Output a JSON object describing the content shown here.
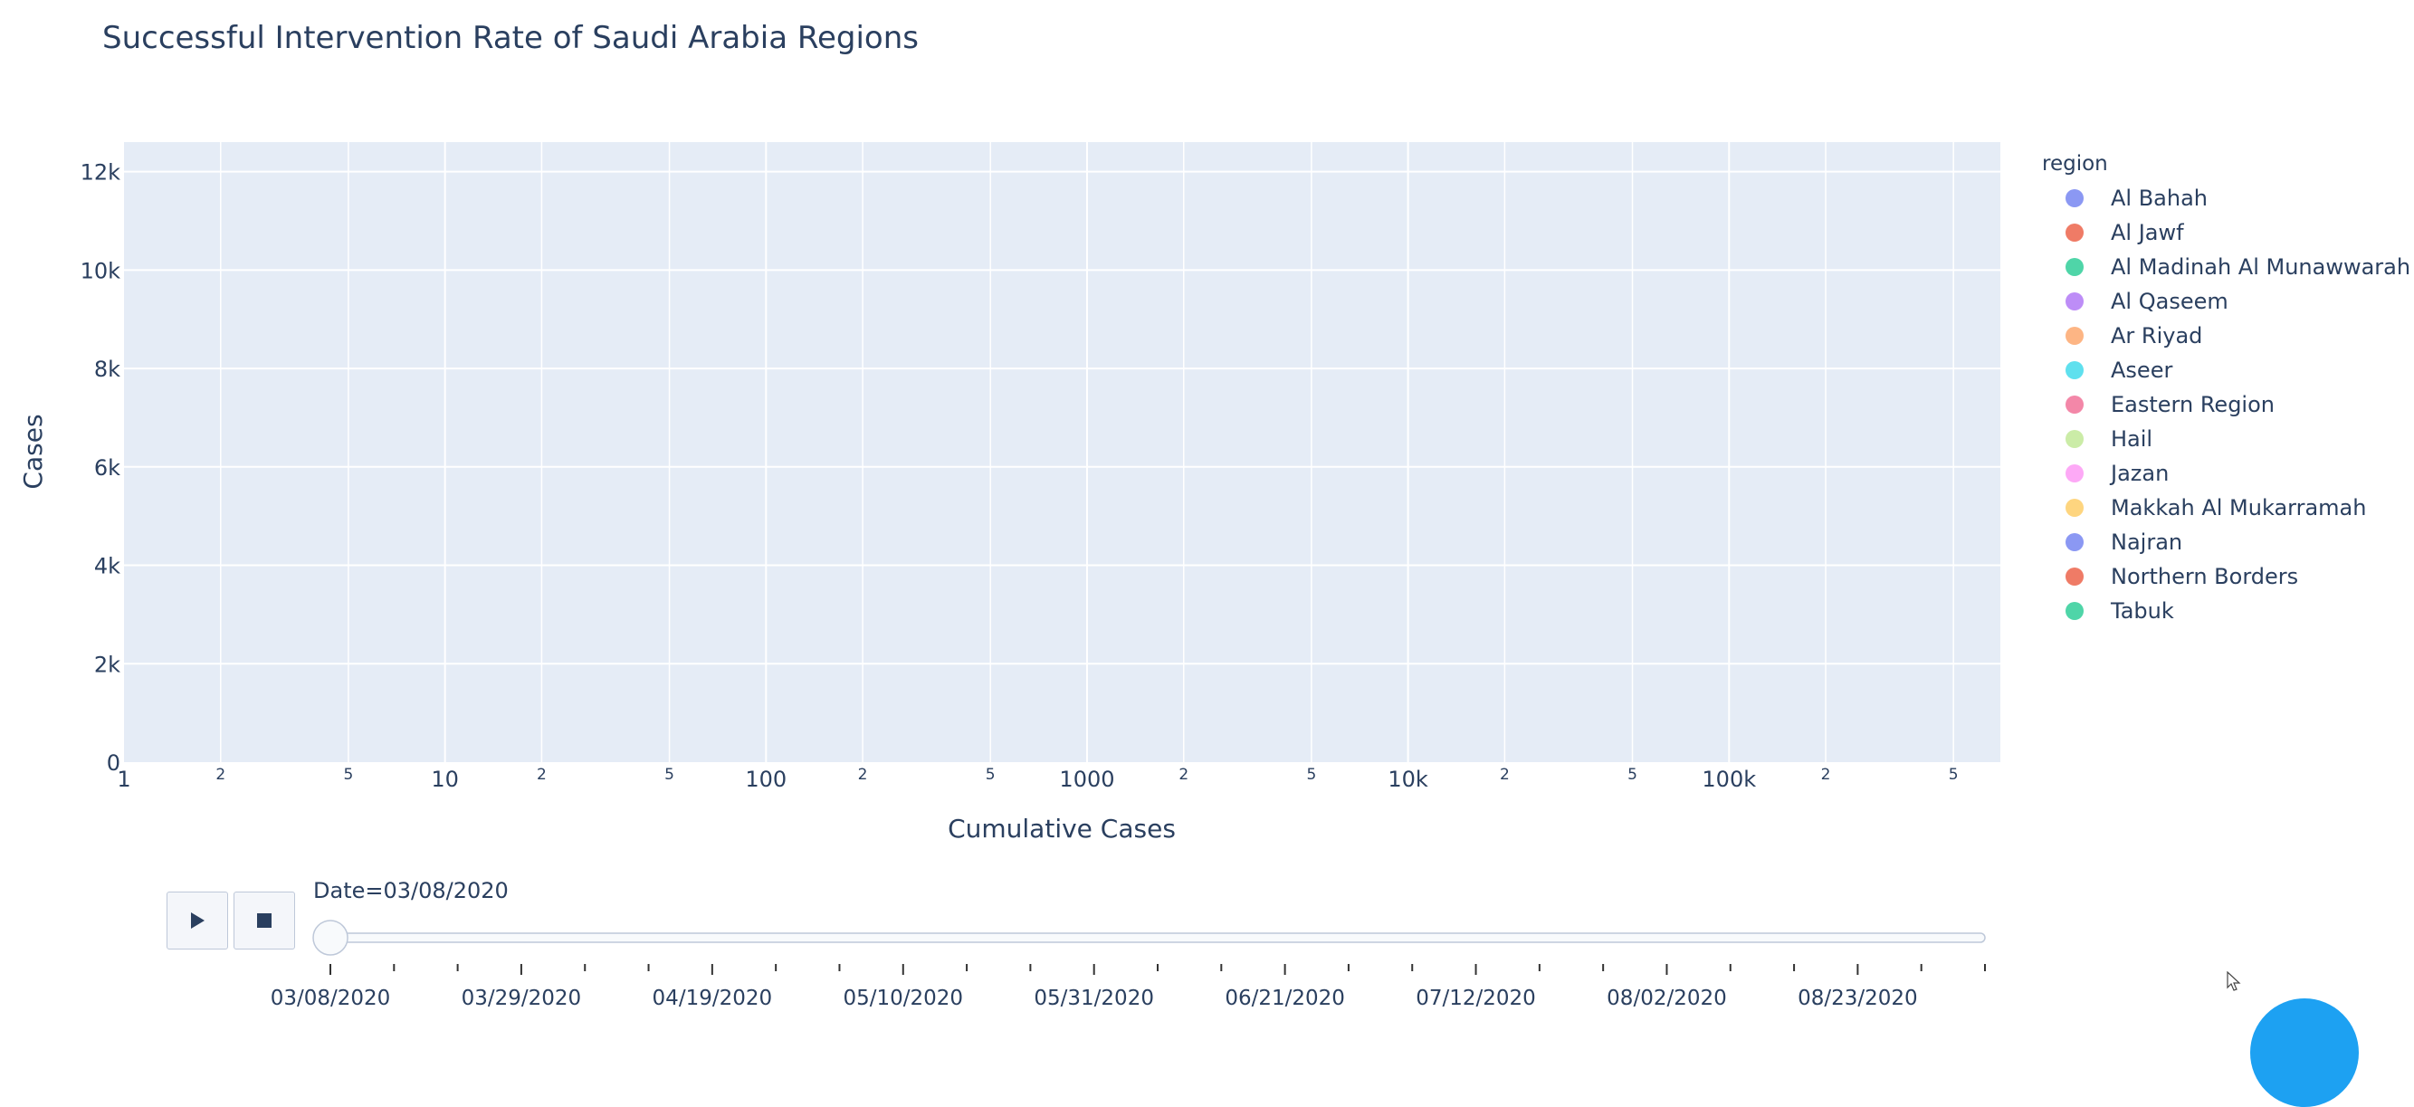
{
  "chart_data": {
    "type": "scatter",
    "title": "Successful Intervention Rate of Saudi Arabia Regions",
    "xlabel": "Cumulative Cases",
    "ylabel": "Cases",
    "x_scale": "log",
    "xlim": [
      1,
      700000
    ],
    "ylim": [
      0,
      12600
    ],
    "y_ticks": [
      {
        "v": 0,
        "label": "0"
      },
      {
        "v": 2000,
        "label": "2k"
      },
      {
        "v": 4000,
        "label": "4k"
      },
      {
        "v": 6000,
        "label": "6k"
      },
      {
        "v": 8000,
        "label": "8k"
      },
      {
        "v": 10000,
        "label": "10k"
      },
      {
        "v": 12000,
        "label": "12k"
      }
    ],
    "x_major_ticks": [
      {
        "v": 1,
        "label": "1"
      },
      {
        "v": 10,
        "label": "10"
      },
      {
        "v": 100,
        "label": "100"
      },
      {
        "v": 1000,
        "label": "1000"
      },
      {
        "v": 10000,
        "label": "10k"
      },
      {
        "v": 100000,
        "label": "100k"
      }
    ],
    "x_minor_ticks": [
      {
        "v": 2,
        "label": "2"
      },
      {
        "v": 5,
        "label": "5"
      },
      {
        "v": 20,
        "label": "2"
      },
      {
        "v": 50,
        "label": "5"
      },
      {
        "v": 200,
        "label": "2"
      },
      {
        "v": 500,
        "label": "5"
      },
      {
        "v": 2000,
        "label": "2"
      },
      {
        "v": 5000,
        "label": "5"
      },
      {
        "v": 20000,
        "label": "2"
      },
      {
        "v": 50000,
        "label": "5"
      },
      {
        "v": 200000,
        "label": "2"
      },
      {
        "v": 500000,
        "label": "5"
      }
    ],
    "grid": true,
    "legend": {
      "title": "region",
      "placement": "right",
      "items": [
        {
          "name": "Al Bahah",
          "color": "#8b98f3"
        },
        {
          "name": "Al Jawf",
          "color": "#ef7b66"
        },
        {
          "name": "Al Madinah Al Munawwarah",
          "color": "#4fd5a8"
        },
        {
          "name": "Al Qaseem",
          "color": "#bd8df7"
        },
        {
          "name": "Ar Riyad",
          "color": "#fdb584"
        },
        {
          "name": "Aseer",
          "color": "#5fe0ee"
        },
        {
          "name": "Eastern Region",
          "color": "#f387a8"
        },
        {
          "name": "Hail",
          "color": "#cbeca7"
        },
        {
          "name": "Jazan",
          "color": "#fda9f6"
        },
        {
          "name": "Makkah Al Mukarramah",
          "color": "#fed57f"
        },
        {
          "name": "Najran",
          "color": "#8b98f3"
        },
        {
          "name": "Northern Borders",
          "color": "#ef7b66"
        },
        {
          "name": "Tabuk",
          "color": "#4fd5a8"
        }
      ]
    },
    "series": []
  },
  "animation": {
    "current_label": "Date=03/08/2020",
    "play_icon": "play-icon",
    "stop_icon": "stop-icon",
    "position_fraction": 0,
    "date_ticks": [
      "03/08/2020",
      "03/29/2020",
      "04/19/2020",
      "05/10/2020",
      "05/31/2020",
      "06/21/2020",
      "07/12/2020",
      "08/02/2020",
      "08/23/2020"
    ]
  }
}
